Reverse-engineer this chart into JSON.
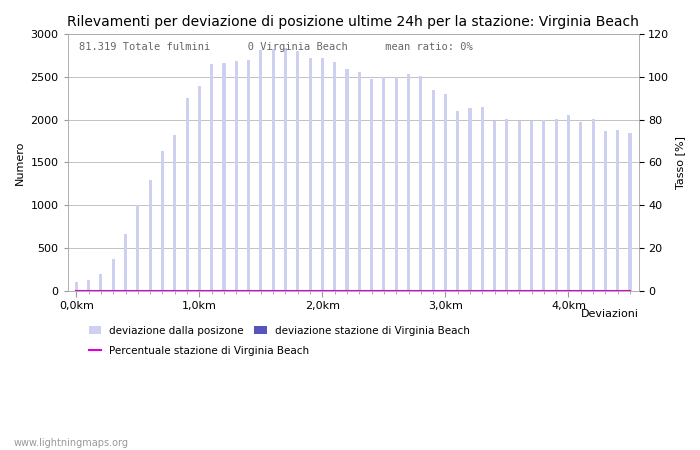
{
  "title": "Rilevamenti per deviazione di posizione ultime 24h per la stazione: Virginia Beach",
  "xlabel": "Deviazioni",
  "ylabel_left": "Numero",
  "ylabel_right": "Tasso [%]",
  "annotation": "81.319 Totale fulmini      0 Virginia Beach      mean ratio: 0%",
  "watermark": "www.lightningmaps.org",
  "bar_values": [
    100,
    120,
    200,
    370,
    660,
    1000,
    1290,
    1640,
    1820,
    2250,
    2400,
    2650,
    2660,
    2690,
    2700,
    2820,
    2830,
    2840,
    2800,
    2720,
    2720,
    2680,
    2600,
    2560,
    2480,
    2500,
    2500,
    2530,
    2510,
    2350,
    2300,
    2100,
    2140,
    2150,
    1980,
    2010,
    1990,
    1980,
    2000,
    2010,
    2060,
    1970,
    2010,
    1870,
    1880,
    1840
  ],
  "station_values": [
    0,
    0,
    0,
    0,
    0,
    0,
    0,
    0,
    0,
    0,
    0,
    0,
    0,
    0,
    0,
    0,
    0,
    0,
    0,
    0,
    0,
    0,
    0,
    0,
    0,
    0,
    0,
    0,
    0,
    0,
    0,
    0,
    0,
    0,
    0,
    0,
    0,
    0,
    0,
    0,
    0,
    0,
    0,
    0,
    0,
    0
  ],
  "ratio_values": [
    0,
    0,
    0,
    0,
    0,
    0,
    0,
    0,
    0,
    0,
    0,
    0,
    0,
    0,
    0,
    0,
    0,
    0,
    0,
    0,
    0,
    0,
    0,
    0,
    0,
    0,
    0,
    0,
    0,
    0,
    0,
    0,
    0,
    0,
    0,
    0,
    0,
    0,
    0,
    0,
    0,
    0,
    0,
    0,
    0,
    0
  ],
  "n_bars": 46,
  "x_tick_labels": [
    "0,0km",
    "1,0km",
    "2,0km",
    "3,0km",
    "4,0km"
  ],
  "ylim_left": [
    0,
    3000
  ],
  "ylim_right": [
    0,
    120
  ],
  "yticks_left": [
    0,
    500,
    1000,
    1500,
    2000,
    2500,
    3000
  ],
  "yticks_right": [
    0,
    20,
    40,
    60,
    80,
    100,
    120
  ],
  "bar_color_light": "#cdd0f0",
  "bar_color_station": "#5555bb",
  "line_color_ratio": "#dd00dd",
  "bg_color": "#ffffff",
  "grid_color": "#aaaaaa",
  "title_fontsize": 10,
  "label_fontsize": 8,
  "tick_fontsize": 8,
  "bar_width": 0.25
}
